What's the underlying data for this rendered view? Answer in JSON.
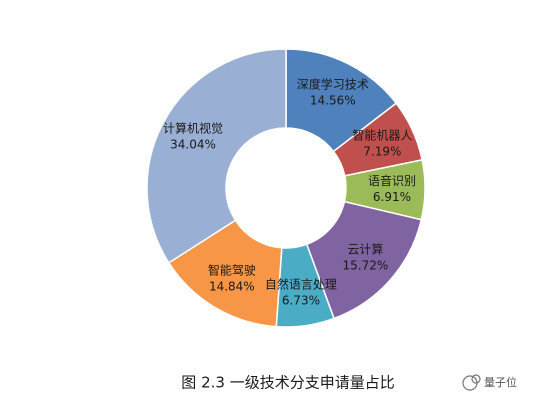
{
  "chart_data": {
    "type": "donut",
    "title": "图 2.3  一级技术分支申请量占比",
    "watermark": "量子位",
    "categories": [
      "深度学习技术",
      "智能机器人",
      "语音识别",
      "云计算",
      "自然语言处理",
      "智能驾驶",
      "计算机视觉"
    ],
    "values": [
      14.56,
      7.19,
      6.91,
      15.72,
      6.73,
      14.84,
      34.04
    ],
    "value_labels": [
      "14.56%",
      "7.19%",
      "6.91%",
      "15.72%",
      "6.73%",
      "14.84%",
      "34.04%"
    ],
    "colors": [
      "#4f81bd",
      "#c0504d",
      "#9bbb59",
      "#8064a2",
      "#4bacc6",
      "#f79646",
      "#9aafd4"
    ]
  }
}
